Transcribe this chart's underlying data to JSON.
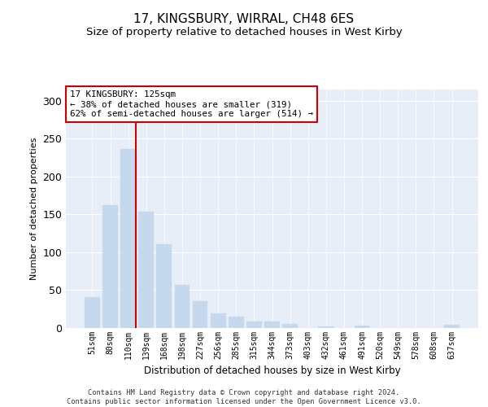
{
  "title": "17, KINGSBURY, WIRRAL, CH48 6ES",
  "subtitle": "Size of property relative to detached houses in West Kirby",
  "xlabel": "Distribution of detached houses by size in West Kirby",
  "ylabel": "Number of detached properties",
  "categories": [
    "51sqm",
    "80sqm",
    "110sqm",
    "139sqm",
    "168sqm",
    "198sqm",
    "227sqm",
    "256sqm",
    "285sqm",
    "315sqm",
    "344sqm",
    "373sqm",
    "403sqm",
    "432sqm",
    "461sqm",
    "491sqm",
    "520sqm",
    "549sqm",
    "578sqm",
    "608sqm",
    "637sqm"
  ],
  "values": [
    40,
    162,
    236,
    153,
    110,
    57,
    35,
    19,
    15,
    8,
    8,
    5,
    0,
    2,
    0,
    3,
    0,
    0,
    0,
    0,
    4
  ],
  "bar_color": "#c5d8ed",
  "bar_edge_color": "#c5d8ed",
  "annotation_text": "17 KINGSBURY: 125sqm\n← 38% of detached houses are smaller (319)\n62% of semi-detached houses are larger (514) →",
  "annotation_box_color": "#ffffff",
  "annotation_box_edge": "#cc0000",
  "line_color": "#cc0000",
  "ylim": [
    0,
    315
  ],
  "yticks": [
    0,
    50,
    100,
    150,
    200,
    250,
    300
  ],
  "background_color": "#e8eef7",
  "footer": "Contains HM Land Registry data © Crown copyright and database right 2024.\nContains public sector information licensed under the Open Government Licence v3.0.",
  "title_fontsize": 11,
  "subtitle_fontsize": 9.5
}
